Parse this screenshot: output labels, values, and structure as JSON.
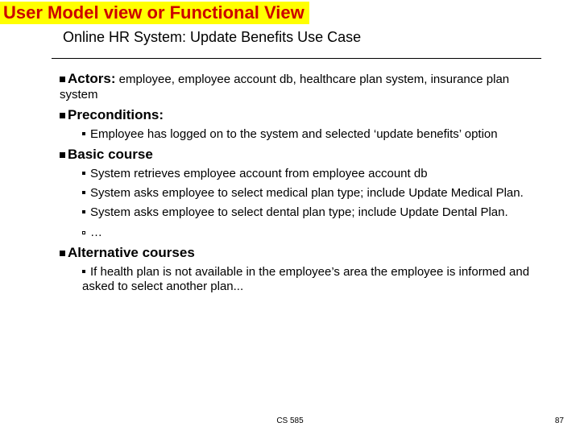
{
  "colors": {
    "title_bg": "#ffff00",
    "title_fg": "#cc0000",
    "text": "#000000",
    "background": "#ffffff"
  },
  "title": "User Model view or Functional View",
  "subtitle": "Online HR System: Update Benefits Use Case",
  "actors": {
    "label": "Actors:",
    "text": " employee, employee account db, healthcare plan system, insurance plan system"
  },
  "preconditions": {
    "label": "Preconditions:",
    "items": [
      "Employee has logged on to the system and selected ‘update benefits’ option"
    ]
  },
  "basic": {
    "label": "Basic course",
    "items": [
      "System retrieves employee account from employee account db",
      "System asks employee to select medical plan type; include Update Medical Plan.",
      "System asks employee to select dental plan type; include Update Dental Plan.",
      "…"
    ]
  },
  "alternative": {
    "label": "Alternative courses",
    "items": [
      "If health plan is not available in the employee’s area the employee is informed and asked to select another plan..."
    ]
  },
  "footer": {
    "center": "CS 585",
    "page": "87"
  }
}
